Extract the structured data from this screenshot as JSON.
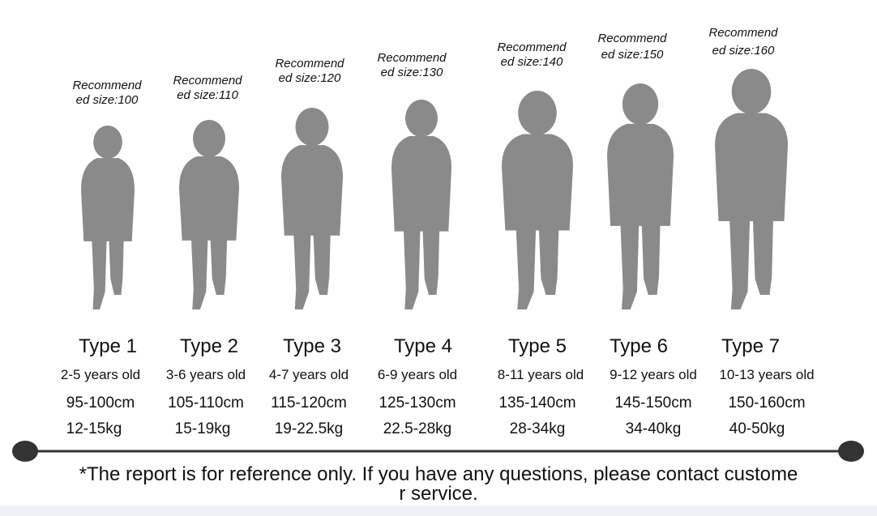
{
  "types": [
    {
      "recommend": [
        "Recommend",
        "ed size:100"
      ],
      "name": "Type 1",
      "age": "2-5 years old",
      "height": "95-100cm",
      "weight": "12-15kg"
    },
    {
      "recommend": [
        "Recommend",
        "ed size:110"
      ],
      "name": "Type 2",
      "age": "3-6 years old",
      "height": "105-110cm",
      "weight": "15-19kg"
    },
    {
      "recommend": [
        "Recommend",
        "ed size:120"
      ],
      "name": "Type 3",
      "age": "4-7 years old",
      "height": "115-120cm",
      "weight": "19-22.5kg"
    },
    {
      "recommend": [
        "Recommend",
        "ed size:130"
      ],
      "name": "Type 4",
      "age": "6-9 years old",
      "height": "125-130cm",
      "weight": "22.5-28kg"
    },
    {
      "recommend": [
        "Recommend",
        "ed size:140"
      ],
      "name": "Type 5",
      "age": "8-11 years old",
      "height": "135-140cm",
      "weight": "28-34kg"
    },
    {
      "recommend": [
        "Recommend",
        "ed size:150"
      ],
      "name": "Type 6",
      "age": "9-12 years old",
      "height": "145-150cm",
      "weight": "34-40kg"
    },
    {
      "recommend": [
        "Recommend",
        "ed size:160"
      ],
      "name": "Type 7",
      "age": "10-13 years old",
      "height": "150-160cm",
      "weight": "40-50kg"
    }
  ],
  "footer": [
    "*The report is for reference only. If you have any questions, please contact custome",
    "r service."
  ]
}
